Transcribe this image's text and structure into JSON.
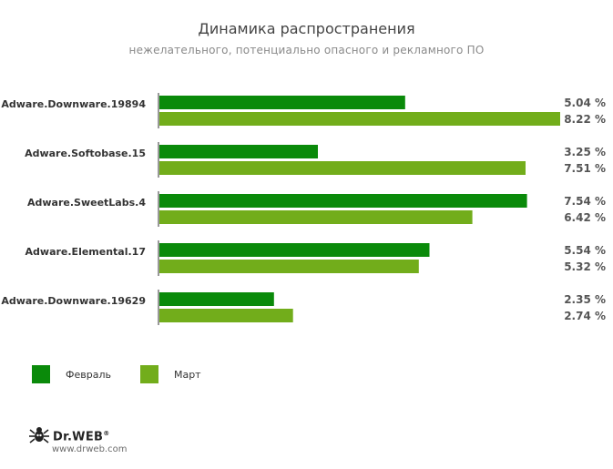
{
  "title": "Динамика распространения",
  "subtitle": "нежелательного, потенциально опасного и рекламного ПО",
  "colors": {
    "feb": "#0a8a0a",
    "mar": "#72ad1b",
    "axis": "#333333"
  },
  "legend": [
    {
      "label": "Февраль",
      "color": "#0a8a0a"
    },
    {
      "label": "Март",
      "color": "#72ad1b"
    }
  ],
  "logo": {
    "text": "Dr.WEB",
    "mark": "®",
    "icon": "spider-icon"
  },
  "site": "www.drweb.com",
  "chart_data": {
    "type": "bar",
    "orientation": "horizontal",
    "categories": [
      "Adware.Downware.19894",
      "Adware.Softobase.15",
      "Adware.SweetLabs.4",
      "Adware.Elemental.17",
      "Adware.Downware.19629"
    ],
    "series": [
      {
        "name": "Февраль",
        "values": [
          5.04,
          3.25,
          7.54,
          5.54,
          2.35
        ],
        "labels": [
          "5.04 %",
          "3.25 %",
          "7.54 %",
          "5.54 %",
          "2.35 %"
        ]
      },
      {
        "name": "Март",
        "values": [
          8.22,
          7.51,
          6.42,
          5.32,
          2.74
        ],
        "labels": [
          "8.22 %",
          "7.51 %",
          "6.42 %",
          "5.32 %",
          "2.74 %"
        ]
      }
    ],
    "title": "Динамика распространения",
    "subtitle": "нежелательного, потенциально опасного и рекламного ПО",
    "xlim": [
      0,
      8.22
    ],
    "grid": false,
    "legend_position": "bottom-left"
  }
}
